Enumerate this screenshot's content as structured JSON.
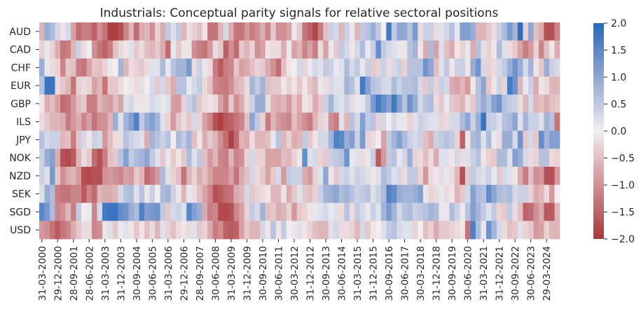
{
  "chart_data": {
    "type": "heatmap",
    "title": "Industrials: Conceptual parity signals for relative sectoral positions",
    "xlabel": "",
    "ylabel": "",
    "rows": [
      "AUD",
      "CAD",
      "CHF",
      "EUR",
      "GBP",
      "ILS",
      "JPY",
      "NOK",
      "NZD",
      "SEK",
      "SGD",
      "USD"
    ],
    "x_tick_labels": [
      "31-03-2000",
      "29-12-2000",
      "28-09-2001",
      "28-06-2002",
      "31-03-2003",
      "31-12-2003",
      "30-09-2004",
      "30-06-2005",
      "31-03-2006",
      "29-12-2006",
      "28-09-2007",
      "30-06-2008",
      "31-03-2009",
      "31-12-2009",
      "30-09-2010",
      "30-06-2011",
      "30-03-2012",
      "31-12-2012",
      "30-09-2013",
      "30-06-2014",
      "31-03-2015",
      "31-12-2015",
      "30-09-2016",
      "30-06-2017",
      "30-03-2018",
      "31-12-2018",
      "30-09-2019",
      "30-06-2020",
      "31-03-2021",
      "31-12-2021",
      "30-09-2022",
      "30-06-2023",
      "29-03-2024"
    ],
    "n_columns": 99,
    "columns_per_tick": 3,
    "colorbar": {
      "min": -2.0,
      "max": 2.0,
      "ticks": [
        "2.0",
        "1.5",
        "1.0",
        "0.5",
        "0.0",
        "−0.5",
        "−1.0",
        "−1.5",
        "−2.0"
      ],
      "colormap": "vlag_r (red = negative, blue = positive)"
    },
    "values": [
      [
        -0.6,
        0.9,
        0.7,
        0.3,
        -0.1,
        0.3,
        -0.8,
        -1.4,
        -1.2,
        -1.2,
        -1.5,
        -1.0,
        -1.3,
        -1.9,
        -1.9,
        -1.7,
        -1.1,
        -0.6,
        -1.4,
        -0.7,
        -0.6,
        -1.0,
        -0.3,
        -0.7,
        0.5,
        0.2,
        0.5,
        -0.6,
        -0.2,
        -0.3,
        -0.5,
        -0.1,
        -1.3,
        -1.3,
        -0.6,
        0.3,
        -0.7,
        -1.3,
        -1.3,
        -0.9,
        -1.2,
        -1.0,
        -0.7,
        -1.1,
        -0.4,
        -1.0,
        -1.0,
        -0.8,
        0.1,
        -0.4,
        -1.3,
        -1.5,
        -1.8,
        -1.2,
        -0.5,
        0.4,
        0.3,
        -0.6,
        0.4,
        0.1,
        -0.6,
        0.5,
        0.6,
        0.9,
        0.5,
        0.0,
        1.7,
        0.5,
        1.0,
        1.0,
        0.6,
        1.2,
        -0.2,
        0.4,
        0.4,
        -0.2,
        0.2,
        0.3,
        0.6,
        0.1,
        1.1,
        1.1,
        0.9,
        -0.6,
        -0.6,
        -0.4,
        -0.2,
        0.4,
        0.7,
        1.2,
        0.8,
        1.9,
        -0.3,
        1.0,
        -0.5,
        -0.7,
        -1.7,
        -1.7,
        -1.1
      ],
      [
        -0.3,
        0.1,
        -0.3,
        -0.7,
        -1.3,
        -1.2,
        -0.6,
        0.4,
        -0.2,
        0.0,
        -1.0,
        -1.3,
        -1.5,
        -1.2,
        -0.5,
        -0.2,
        -0.1,
        0.2,
        -0.4,
        -0.2,
        -0.5,
        -0.6,
        -0.4,
        -0.7,
        -1.4,
        0.1,
        -0.4,
        -0.1,
        -0.1,
        -1.0,
        -1.2,
        -1.3,
        -0.9,
        -0.2,
        -0.4,
        -1.5,
        -1.0,
        -1.4,
        -0.4,
        -0.6,
        -0.3,
        -1.0,
        -0.8,
        -0.1,
        -0.2,
        -0.2,
        -0.7,
        0.1,
        -0.8,
        -0.6,
        -1.1,
        -0.8,
        -1.2,
        -0.2,
        -0.8,
        0.1,
        -0.4,
        0.5,
        0.3,
        -0.1,
        0.3,
        0.7,
        0.1,
        0.4,
        1.4,
        0.5,
        0.3,
        0.2,
        0.1,
        -0.1,
        0.6,
        0.8,
        -0.1,
        -0.7,
        0.7,
        -0.8,
        0.2,
        -0.5,
        -0.7,
        -0.1,
        -0.3,
        0.1,
        -0.7,
        0.6,
        0.2,
        -0.3,
        -0.1,
        0.7,
        0.2,
        -0.2,
        -0.4,
        -0.8,
        -1.2,
        -0.9,
        -0.3,
        -1.1,
        -0.5,
        -0.1,
        -0.7
      ],
      [
        0.9,
        0.1,
        -0.2,
        -0.3,
        -1.1,
        -0.4,
        -0.5,
        -1.2,
        -1.3,
        -0.8,
        -0.4,
        -0.5,
        -0.3,
        0.1,
        0.0,
        0.8,
        -0.6,
        -0.2,
        -0.3,
        -0.4,
        -0.2,
        0.2,
        0.2,
        0.7,
        0.1,
        0.6,
        0.8,
        0.8,
        1.2,
        -0.2,
        0.4,
        0.1,
        -0.2,
        -1.2,
        -1.6,
        -1.2,
        -1.1,
        -0.4,
        -0.8,
        -0.7,
        -0.5,
        -0.3,
        -0.4,
        -0.7,
        -1.0,
        -1.4,
        -0.5,
        -0.1,
        0.0,
        0.3,
        -0.3,
        0.1,
        0.3,
        0.2,
        0.5,
        0.4,
        0.1,
        0.2,
        0.7,
        0.3,
        0.5,
        0.1,
        0.4,
        -0.4,
        -0.3,
        0.4,
        -0.2,
        0.3,
        0.4,
        -0.3,
        0.6,
        0.6,
        0.6,
        1.3,
        1.0,
        -0.5,
        0.2,
        0.5,
        -0.1,
        0.4,
        0.4,
        -0.1,
        0.9,
        1.3,
        0.3,
        -0.3,
        -0.2,
        0.3,
        0.5,
        0.9,
        1.3,
        0.9,
        0.3,
        0.8,
        -0.1,
        -0.4,
        0.9,
        0.4,
        0.3
      ],
      [
        0.6,
        1.8,
        1.8,
        -0.2,
        -0.4,
        -0.6,
        -1.3,
        -0.3,
        -0.2,
        -0.3,
        -0.8,
        -0.6,
        -1.3,
        -0.4,
        -0.4,
        -0.2,
        0.0,
        -0.1,
        -0.2,
        0.2,
        0.0,
        0.3,
        -0.4,
        0.3,
        -0.4,
        -0.7,
        0.6,
        0.6,
        0.1,
        0.3,
        0.5,
        -0.2,
        -0.5,
        -1.1,
        -1.2,
        -1.3,
        -1.0,
        -0.6,
        -0.5,
        -0.2,
        0.8,
        0.5,
        0.8,
        -0.5,
        -0.4,
        -0.4,
        -0.1,
        -0.3,
        -0.1,
        -0.4,
        -0.1,
        -0.4,
        -0.6,
        0.1,
        -0.2,
        0.3,
        0.2,
        0.2,
        0.8,
        0.6,
        0.2,
        1.7,
        1.1,
        0.6,
        0.5,
        0.3,
        0.3,
        0.7,
        0.4,
        0.6,
        0.6,
        0.7,
        0.3,
        -0.4,
        0.5,
        -0.3,
        0.4,
        0.3,
        -0.7,
        -0.8,
        -0.6,
        -0.9,
        -0.1,
        0.6,
        1.0,
        -0.4,
        -0.1,
        0.4,
        -0.3,
        1.7,
        1.3,
        -0.6,
        0.1,
        0.4,
        -0.7,
        -0.1,
        -0.2,
        -0.6,
        -0.6
      ],
      [
        -0.1,
        -0.7,
        -0.5,
        -0.8,
        -1.4,
        -1.3,
        -0.9,
        -0.5,
        -0.4,
        -1.2,
        -1.2,
        -0.6,
        -0.8,
        -0.9,
        -0.5,
        -0.8,
        0.2,
        0.3,
        -0.1,
        -0.1,
        0.1,
        0.3,
        0.2,
        0.1,
        0.2,
        -0.8,
        -0.9,
        -0.3,
        0.4,
        0.6,
        -0.4,
        -0.2,
        -0.1,
        -0.2,
        -0.8,
        -1.2,
        -0.4,
        -1.0,
        -0.7,
        -0.2,
        0.4,
        0.9,
        0.9,
        -0.2,
        -0.6,
        -0.7,
        -0.6,
        -0.9,
        -0.4,
        -0.7,
        -0.1,
        -0.2,
        -0.7,
        -0.4,
        0.4,
        0.8,
        0.3,
        0.2,
        0.4,
        -0.2,
        0.1,
        0.1,
        0.5,
        1.2,
        1.7,
        1.4,
        1.1,
        1.7,
        1.1,
        0.6,
        1.3,
        0.9,
        0.3,
        0.6,
        0.7,
        -0.2,
        -0.4,
        0.1,
        -0.4,
        -0.5,
        -0.6,
        -0.2,
        -0.4,
        0.6,
        0.9,
        0.6,
        1.1,
        1.3,
        0.6,
        0.5,
        0.4,
        -0.2,
        -0.6,
        0.3,
        -0.6,
        -0.5,
        -0.7,
        -0.5,
        -0.4
      ],
      [
        -0.2,
        -0.4,
        -0.6,
        -0.6,
        -0.7,
        -1.2,
        -0.9,
        -0.7,
        -1.1,
        -0.8,
        -1.3,
        -1.0,
        -1.0,
        -0.6,
        0.9,
        0.2,
        0.8,
        1.1,
        1.6,
        0.5,
        0.9,
        1.1,
        0.8,
        0.2,
        -0.3,
        -0.9,
        -0.4,
        -0.2,
        -0.4,
        0.3,
        -0.3,
        -0.8,
        -1.1,
        -1.7,
        -1.9,
        -1.6,
        -1.5,
        -1.3,
        -1.1,
        -0.5,
        1.0,
        0.5,
        -0.3,
        -1.2,
        -0.6,
        -0.9,
        -1.0,
        -1.1,
        -0.5,
        -0.8,
        -1.0,
        -1.2,
        -0.6,
        -0.3,
        -0.2,
        -1.0,
        -1.2,
        0.2,
        -0.6,
        0.6,
        0.3,
        1.1,
        0.5,
        0.6,
        -0.3,
        0.3,
        0.0,
        0.3,
        0.1,
        0.1,
        -0.3,
        0.2,
        0.4,
        0.3,
        0.2,
        0.2,
        -0.3,
        -0.2,
        0.3,
        0.3,
        0.7,
        1.0,
        0.4,
        0.9,
        1.8,
        0.5,
        0.4,
        0.2,
        0.6,
        0.7,
        1.0,
        0.2,
        0.8,
        0.4,
        0.4,
        0.2,
        0.8,
        0.6,
        -1.3
      ],
      [
        0.6,
        0.3,
        0.4,
        0.4,
        -0.6,
        -0.5,
        -1.2,
        -0.4,
        0.3,
        -0.1,
        0.4,
        0.3,
        -0.9,
        -0.5,
        -0.2,
        -0.2,
        0.6,
        0.4,
        0.3,
        0.2,
        -0.7,
        0.8,
        0.6,
        0.4,
        0.6,
        0.0,
        0.7,
        0.5,
        0.8,
        -0.5,
        -0.1,
        -0.7,
        -0.4,
        -0.6,
        -1.0,
        -1.4,
        -1.9,
        -1.4,
        -0.6,
        -0.7,
        -0.2,
        -0.6,
        -0.6,
        -0.5,
        0.1,
        0.6,
        -0.6,
        -0.3,
        -0.7,
        -0.6,
        0.5,
        -0.4,
        -0.1,
        0.3,
        0.3,
        0.8,
        1.6,
        1.5,
        0.9,
        1.1,
        0.4,
        1.2,
        -0.3,
        -0.2,
        0.0,
        -0.8,
        0.5,
        0.8,
        1.1,
        0.7,
        0.4,
        0.3,
        0.4,
        -0.5,
        -0.7,
        0.4,
        0.5,
        0.6,
        0.5,
        -0.3,
        -1.5,
        -0.1,
        0.7,
        0.8,
        0.2,
        0.7,
        0.1,
        -0.2,
        0.9,
        0.9,
        0.3,
        1.3,
        -0.4,
        0.3,
        -0.4,
        1.4,
        0.8,
        1.1,
        1.1
      ],
      [
        0.4,
        0.9,
        1.1,
        -0.7,
        -1.7,
        -1.8,
        -1.6,
        -0.6,
        -0.2,
        -0.4,
        -1.4,
        -1.7,
        -1.2,
        -0.5,
        -0.4,
        0.6,
        1.1,
        0.5,
        0.7,
        0.8,
        1.0,
        0.5,
        0.2,
        -0.4,
        0.1,
        -0.4,
        -0.1,
        -0.4,
        0.7,
        0.2,
        0.5,
        -0.5,
        -0.9,
        -0.6,
        -1.1,
        -1.2,
        -0.6,
        -1.1,
        -1.0,
        -0.3,
        0.3,
        -0.3,
        -0.3,
        -0.8,
        -0.8,
        -0.8,
        -0.5,
        -0.6,
        -0.3,
        -0.1,
        1.4,
        0.2,
        0.3,
        -0.3,
        -0.4,
        0.4,
        0.5,
        0.6,
        1.3,
        0.1,
        0.2,
        -0.2,
        0.1,
        0.4,
        -1.6,
        -0.9,
        0.5,
        0.6,
        0.1,
        0.3,
        0.9,
        -0.3,
        -0.2,
        -0.5,
        -0.2,
        -0.7,
        0.2,
        0.2,
        -0.1,
        0.3,
        -0.2,
        0.2,
        0.4,
        0.6,
        -0.1,
        -0.3,
        -0.4,
        0.7,
        0.7,
        0.2,
        1.1,
        0.9,
        0.3,
        -0.2,
        -0.3,
        0.6,
        0.6,
        -0.2,
        -0.3
      ],
      [
        0.4,
        0.2,
        1.2,
        -0.4,
        -1.0,
        -0.7,
        -0.6,
        -0.9,
        -1.7,
        -1.8,
        -1.7,
        -1.7,
        -1.0,
        -0.9,
        -1.0,
        -1.1,
        -0.8,
        -0.9,
        -0.4,
        -0.6,
        -1.4,
        -1.2,
        -0.9,
        0.7,
        0.2,
        -0.3,
        -0.5,
        -1.3,
        -0.6,
        -0.3,
        -0.7,
        -0.5,
        -0.8,
        -1.1,
        -1.1,
        -1.1,
        -0.8,
        -1.3,
        -0.7,
        -0.5,
        0.3,
        -0.2,
        -0.4,
        -0.8,
        -0.4,
        0.3,
        -0.9,
        0.5,
        0.4,
        0.4,
        -0.7,
        -0.9,
        -0.3,
        0.2,
        1.0,
        -0.1,
        -0.4,
        0.3,
        0.4,
        0.2,
        0.4,
        0.3,
        0.2,
        -0.1,
        0.2,
        0.7,
        0.5,
        0.2,
        0.3,
        -0.2,
        0.5,
        0.5,
        -0.3,
        -0.9,
        -0.2,
        0.1,
        -0.2,
        0.1,
        -0.2,
        -0.6,
        -1.7,
        -0.4,
        0.5,
        0.3,
        0.2,
        0.4,
        0.1,
        -0.4,
        0.3,
        0.2,
        -0.1,
        -0.7,
        -1.2,
        -0.5,
        -1.0,
        -0.9,
        -1.7,
        -1.7,
        -0.9
      ],
      [
        0.2,
        0.9,
        0.7,
        -1.2,
        -1.3,
        -1.3,
        -1.1,
        -1.1,
        -1.6,
        -1.1,
        -1.4,
        -0.6,
        -0.7,
        -0.7,
        -0.6,
        0.3,
        0.6,
        0.7,
        0.2,
        0.6,
        0.1,
        0.4,
        0.0,
        0.7,
        0.8,
        0.4,
        -0.1,
        -0.6,
        0.1,
        -0.2,
        -0.5,
        -0.8,
        -1.1,
        -1.7,
        -1.6,
        -1.4,
        -1.3,
        -0.7,
        -0.6,
        0.3,
        -0.4,
        -0.3,
        -0.2,
        -0.1,
        -0.6,
        -0.6,
        -0.1,
        -0.7,
        -0.4,
        0.2,
        -0.4,
        -0.5,
        -0.3,
        0.4,
        0.8,
        0.9,
        1.0,
        0.7,
        0.8,
        0.6,
        0.4,
        0.5,
        0.6,
        0.2,
        0.4,
        0.7,
        1.6,
        1.4,
        0.9,
        0.8,
        0.8,
        0.9,
        1.1,
        0.1,
        -0.3,
        -0.2,
        0.1,
        -0.2,
        -0.1,
        -0.6,
        -0.4,
        0.3,
        1.1,
        0.7,
        0.6,
        1.4,
        1.0,
        0.7,
        0.6,
        0.7,
        0.3,
        0.4,
        0.4,
        -0.3,
        -0.7,
        -0.6,
        -0.2,
        -0.9,
        0.0
      ],
      [
        1.5,
        1.2,
        0.7,
        -1.1,
        -1.0,
        -0.6,
        -1.2,
        0.5,
        0.0,
        0.1,
        -1.1,
        0.3,
        1.7,
        1.8,
        1.8,
        1.4,
        1.3,
        0.9,
        0.7,
        1.6,
        1.1,
        1.2,
        1.3,
        0.5,
        -0.4,
        0.3,
        0.4,
        0.2,
        1.5,
        1.1,
        0.9,
        -0.7,
        -1.2,
        -1.1,
        -1.8,
        -1.8,
        -1.7,
        -1.1,
        -0.8,
        -0.3,
        0.5,
        0.3,
        0.8,
        -0.5,
        -0.4,
        -0.7,
        -0.6,
        -0.3,
        -0.9,
        -0.4,
        -0.3,
        -0.1,
        0.1,
        0.2,
        0.3,
        0.1,
        0.2,
        -0.2,
        0.6,
        -0.2,
        0.5,
        0.3,
        0.1,
        0.4,
        0.2,
        0.8,
        1.2,
        0.8,
        0.3,
        0.6,
        0.7,
        0.4,
        0.5,
        0.6,
        0.8,
        0.7,
        -0.1,
        0.1,
        0.7,
        0.4,
        0.1,
        0.6,
        1.1,
        0.8,
        0.5,
        0.2,
        0.5,
        -0.3,
        -0.4,
        0.5,
        -0.2,
        -0.5,
        -1.5,
        -1.4,
        -1.0,
        -0.7,
        -1.6,
        -1.6,
        -0.6
      ],
      [
        -0.9,
        -1.0,
        -1.3,
        -1.6,
        -1.3,
        -1.1,
        -0.7,
        -0.4,
        -0.2,
        -0.2,
        -1.1,
        -1.0,
        -0.1,
        0.2,
        -0.4,
        0.1,
        0.2,
        -0.1,
        -0.4,
        -0.1,
        -0.5,
        -0.2,
        -0.6,
        0.2,
        -0.3,
        -0.5,
        -0.2,
        -0.1,
        -0.2,
        0.2,
        -0.4,
        -0.3,
        -0.7,
        -1.2,
        -1.0,
        -1.5,
        -1.6,
        -1.5,
        -0.8,
        -0.4,
        -0.6,
        -0.6,
        0.3,
        -0.1,
        0.6,
        -0.1,
        0.5,
        0.0,
        -0.1,
        0.2,
        -0.1,
        -0.3,
        -0.5,
        -0.6,
        -0.6,
        0.2,
        0.3,
        -0.2,
        -0.2,
        -0.3,
        -0.6,
        0.3,
        -0.4,
        -0.1,
        0.0,
        0.2,
        0.5,
        0.6,
        0.3,
        0.2,
        0.2,
        -0.3,
        0.0,
        -0.5,
        -0.3,
        -0.7,
        -0.4,
        -0.4,
        -0.3,
        -0.2,
        -0.1,
        -1.3,
        1.6,
        0.7,
        0.1,
        1.3,
        0.8,
        0.3,
        -0.2,
        -0.5,
        -0.4,
        0.2,
        -0.3,
        -0.4,
        -0.9,
        -0.8,
        -0.3,
        -0.6,
        -0.6
      ]
    ]
  }
}
